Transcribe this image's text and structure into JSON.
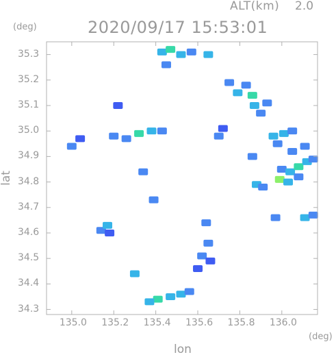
{
  "header": {
    "alt_label": "ALT(km)",
    "alt_value": "2.0",
    "timestamp": "2020/09/17 15:53:01"
  },
  "chart_data": {
    "type": "heatmap",
    "title": "2020/09/17 15:53:01",
    "xlabel": "lon",
    "ylabel": "lat",
    "x_unit": "(deg)",
    "y_unit": "(deg)",
    "xlim": [
      134.88,
      136.17
    ],
    "ylim": [
      34.28,
      35.35
    ],
    "xticks": [
      135.0,
      135.2,
      135.4,
      135.6,
      135.8,
      136.0
    ],
    "yticks": [
      34.3,
      34.4,
      34.5,
      34.6,
      34.7,
      34.8,
      34.9,
      35.0,
      35.1,
      35.2,
      35.3
    ],
    "grid": false,
    "colors": {
      "weak": "#3f5cf2",
      "light": "#4a88f2",
      "moderate": "#36b4e8",
      "strong": "#37d9a8",
      "heavy": "#8cf06a"
    },
    "cells": [
      {
        "lon": 135.43,
        "lat": 35.31,
        "level": "moderate"
      },
      {
        "lon": 135.47,
        "lat": 35.32,
        "level": "strong"
      },
      {
        "lon": 135.52,
        "lat": 35.3,
        "level": "moderate"
      },
      {
        "lon": 135.57,
        "lat": 35.31,
        "level": "light"
      },
      {
        "lon": 135.65,
        "lat": 35.3,
        "level": "moderate"
      },
      {
        "lon": 135.45,
        "lat": 35.26,
        "level": "light"
      },
      {
        "lon": 135.75,
        "lat": 35.19,
        "level": "light"
      },
      {
        "lon": 135.79,
        "lat": 35.15,
        "level": "moderate"
      },
      {
        "lon": 135.83,
        "lat": 35.18,
        "level": "light"
      },
      {
        "lon": 135.86,
        "lat": 35.14,
        "level": "strong"
      },
      {
        "lon": 135.87,
        "lat": 35.1,
        "level": "moderate"
      },
      {
        "lon": 135.9,
        "lat": 35.07,
        "level": "light"
      },
      {
        "lon": 135.93,
        "lat": 35.11,
        "level": "light"
      },
      {
        "lon": 135.96,
        "lat": 34.98,
        "level": "moderate"
      },
      {
        "lon": 135.98,
        "lat": 34.95,
        "level": "light"
      },
      {
        "lon": 136.01,
        "lat": 34.99,
        "level": "moderate"
      },
      {
        "lon": 136.05,
        "lat": 35.0,
        "level": "light"
      },
      {
        "lon": 136.05,
        "lat": 34.92,
        "level": "light"
      },
      {
        "lon": 136.11,
        "lat": 34.94,
        "level": "light"
      },
      {
        "lon": 136.0,
        "lat": 34.85,
        "level": "light"
      },
      {
        "lon": 136.04,
        "lat": 34.84,
        "level": "moderate"
      },
      {
        "lon": 136.08,
        "lat": 34.86,
        "level": "strong"
      },
      {
        "lon": 136.12,
        "lat": 34.88,
        "level": "moderate"
      },
      {
        "lon": 136.15,
        "lat": 34.89,
        "level": "light"
      },
      {
        "lon": 135.99,
        "lat": 34.81,
        "level": "heavy"
      },
      {
        "lon": 136.03,
        "lat": 34.8,
        "level": "moderate"
      },
      {
        "lon": 136.08,
        "lat": 34.82,
        "level": "light"
      },
      {
        "lon": 135.88,
        "lat": 34.79,
        "level": "moderate"
      },
      {
        "lon": 135.91,
        "lat": 34.78,
        "level": "light"
      },
      {
        "lon": 135.86,
        "lat": 34.9,
        "level": "light"
      },
      {
        "lon": 135.0,
        "lat": 34.94,
        "level": "light"
      },
      {
        "lon": 135.04,
        "lat": 34.97,
        "level": "weak"
      },
      {
        "lon": 135.22,
        "lat": 35.1,
        "level": "weak"
      },
      {
        "lon": 135.26,
        "lat": 34.97,
        "level": "light"
      },
      {
        "lon": 135.32,
        "lat": 34.99,
        "level": "strong"
      },
      {
        "lon": 135.38,
        "lat": 35.0,
        "level": "moderate"
      },
      {
        "lon": 135.43,
        "lat": 35.0,
        "level": "light"
      },
      {
        "lon": 135.2,
        "lat": 34.98,
        "level": "light"
      },
      {
        "lon": 135.34,
        "lat": 34.84,
        "level": "light"
      },
      {
        "lon": 135.39,
        "lat": 34.73,
        "level": "light"
      },
      {
        "lon": 135.14,
        "lat": 34.61,
        "level": "light"
      },
      {
        "lon": 135.17,
        "lat": 34.63,
        "level": "moderate"
      },
      {
        "lon": 135.18,
        "lat": 34.6,
        "level": "weak"
      },
      {
        "lon": 135.65,
        "lat": 34.56,
        "level": "light"
      },
      {
        "lon": 135.62,
        "lat": 34.51,
        "level": "light"
      },
      {
        "lon": 135.66,
        "lat": 34.49,
        "level": "weak"
      },
      {
        "lon": 135.6,
        "lat": 34.46,
        "level": "weak"
      },
      {
        "lon": 135.64,
        "lat": 34.64,
        "level": "light"
      },
      {
        "lon": 135.7,
        "lat": 34.98,
        "level": "light"
      },
      {
        "lon": 135.72,
        "lat": 35.01,
        "level": "weak"
      },
      {
        "lon": 136.11,
        "lat": 34.66,
        "level": "moderate"
      },
      {
        "lon": 136.15,
        "lat": 34.67,
        "level": "light"
      },
      {
        "lon": 135.97,
        "lat": 34.66,
        "level": "light"
      },
      {
        "lon": 135.3,
        "lat": 34.44,
        "level": "moderate"
      },
      {
        "lon": 135.52,
        "lat": 34.36,
        "level": "moderate"
      },
      {
        "lon": 135.56,
        "lat": 34.37,
        "level": "light"
      },
      {
        "lon": 135.47,
        "lat": 34.35,
        "level": "moderate"
      },
      {
        "lon": 135.41,
        "lat": 34.34,
        "level": "strong"
      },
      {
        "lon": 135.37,
        "lat": 34.33,
        "level": "moderate"
      }
    ]
  }
}
